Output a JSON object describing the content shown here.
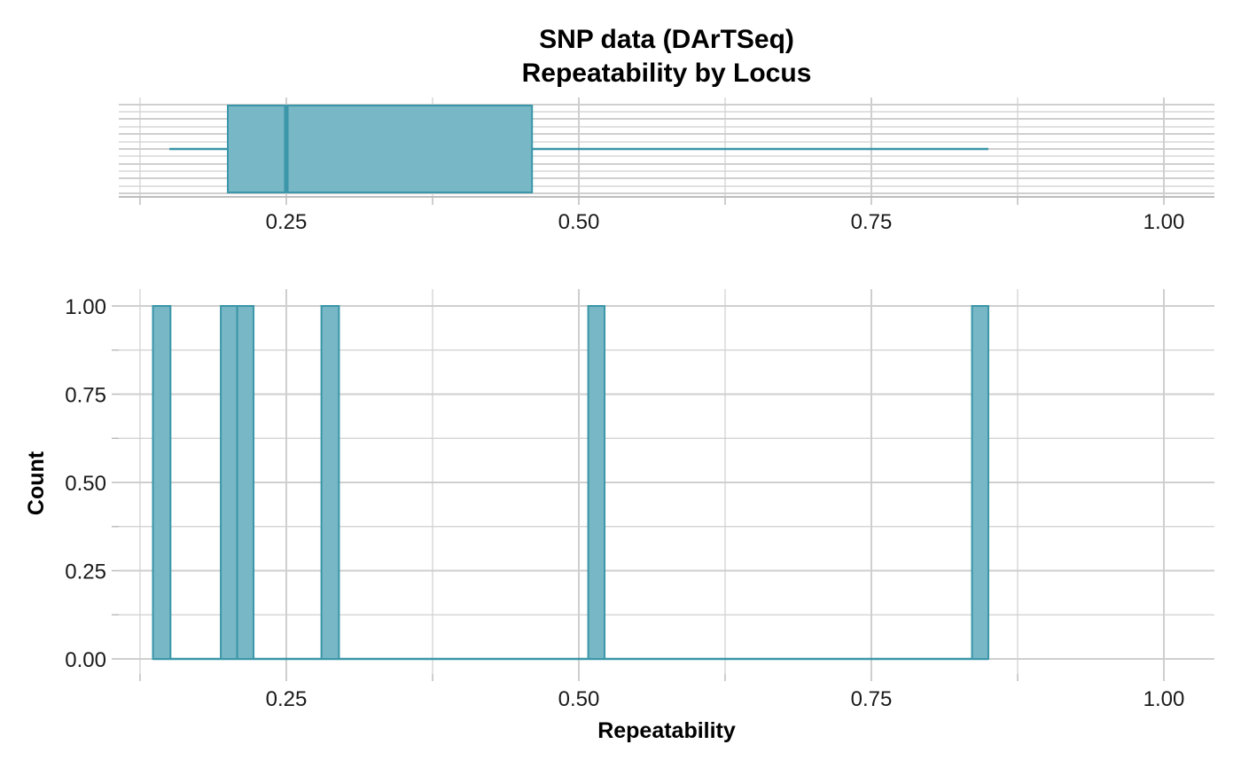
{
  "chart_data": [
    {
      "type": "box",
      "panel": "top",
      "title_line1": "SNP data (DArTSeq)",
      "title_line2": "Repeatability by Locus",
      "xlim": [
        0.1,
        1.0
      ],
      "x_ticks": [
        "0.25",
        "0.50",
        "0.75",
        "1.00"
      ],
      "x_tick_values": [
        0.25,
        0.5,
        0.75,
        1.0
      ],
      "box": {
        "whisker_low": 0.15,
        "q1": 0.2,
        "median": 0.25,
        "q3": 0.46,
        "whisker_high": 0.85
      },
      "grid": true,
      "fill_color": "#78b7c5",
      "line_color": "#3a96a8"
    },
    {
      "type": "bar",
      "panel": "bottom",
      "xlabel": "Repeatability",
      "ylabel": "Count",
      "xlim": [
        0.1,
        1.0
      ],
      "ylim": [
        0,
        1.0
      ],
      "x_ticks": [
        "0.25",
        "0.50",
        "0.75",
        "1.00"
      ],
      "x_tick_values": [
        0.25,
        0.5,
        0.75,
        1.0
      ],
      "y_ticks": [
        "0.00",
        "0.25",
        "0.50",
        "0.75",
        "1.00"
      ],
      "y_tick_values": [
        0,
        0.25,
        0.5,
        0.75,
        1.0
      ],
      "bins_range": [
        0.136,
        0.85
      ],
      "bin_width": 0.0145,
      "bars": [
        {
          "x0": 0.136,
          "x1": 0.151,
          "count": 1
        },
        {
          "x0": 0.194,
          "x1": 0.208,
          "count": 1
        },
        {
          "x0": 0.208,
          "x1": 0.222,
          "count": 1
        },
        {
          "x0": 0.28,
          "x1": 0.295,
          "count": 1
        },
        {
          "x0": 0.508,
          "x1": 0.522,
          "count": 1
        },
        {
          "x0": 0.836,
          "x1": 0.85,
          "count": 1
        }
      ],
      "grid": true,
      "fill_color": "#78b7c5",
      "line_color": "#3a96a8"
    }
  ]
}
